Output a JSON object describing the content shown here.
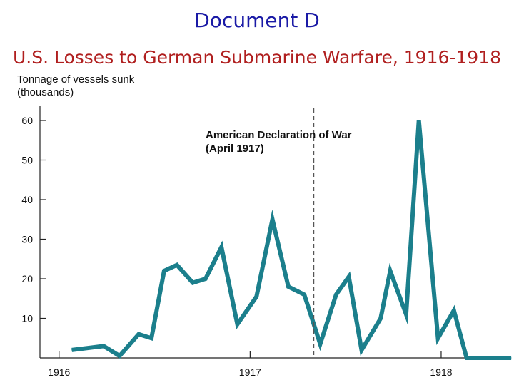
{
  "title": "Document D",
  "subtitle": "U.S. Losses to German Submarine Warfare, 1916-1918",
  "chart_data": {
    "type": "line",
    "ylabel": [
      "Tonnage of vessels sunk",
      "(thousands)"
    ],
    "ylim": [
      0,
      60
    ],
    "y_ticks": [
      10,
      20,
      30,
      40,
      50,
      60
    ],
    "x_ticks": [
      {
        "label": "1916",
        "month_index": 0
      },
      {
        "label": "1917",
        "month_index": 12
      },
      {
        "label": "1918",
        "month_index": 24
      }
    ],
    "annotation": {
      "lines": [
        "American Declaration of War",
        "(April 1917)"
      ],
      "month_index": 16
    },
    "line_color": "#1b7f8c",
    "series": [
      {
        "month_index": [
          0.8,
          2.8,
          3.8,
          5,
          5.8,
          6.6,
          7.4,
          8.4,
          9.2,
          10.2,
          11.2,
          12.4,
          13.4,
          14.4,
          15.4,
          16.4,
          17.4,
          18.2,
          19,
          20.2,
          20.8,
          21.8,
          22.6,
          23.8,
          24.8,
          25.6,
          26.4,
          27.4,
          28.4
        ],
        "values": [
          2,
          3,
          0.5,
          6,
          5,
          22,
          23.5,
          19,
          20,
          28,
          8.5,
          15.5,
          35,
          18,
          16,
          3.5,
          16,
          20.5,
          2,
          10,
          22,
          11,
          60,
          5,
          12,
          0,
          0,
          0,
          0
        ]
      }
    ]
  }
}
